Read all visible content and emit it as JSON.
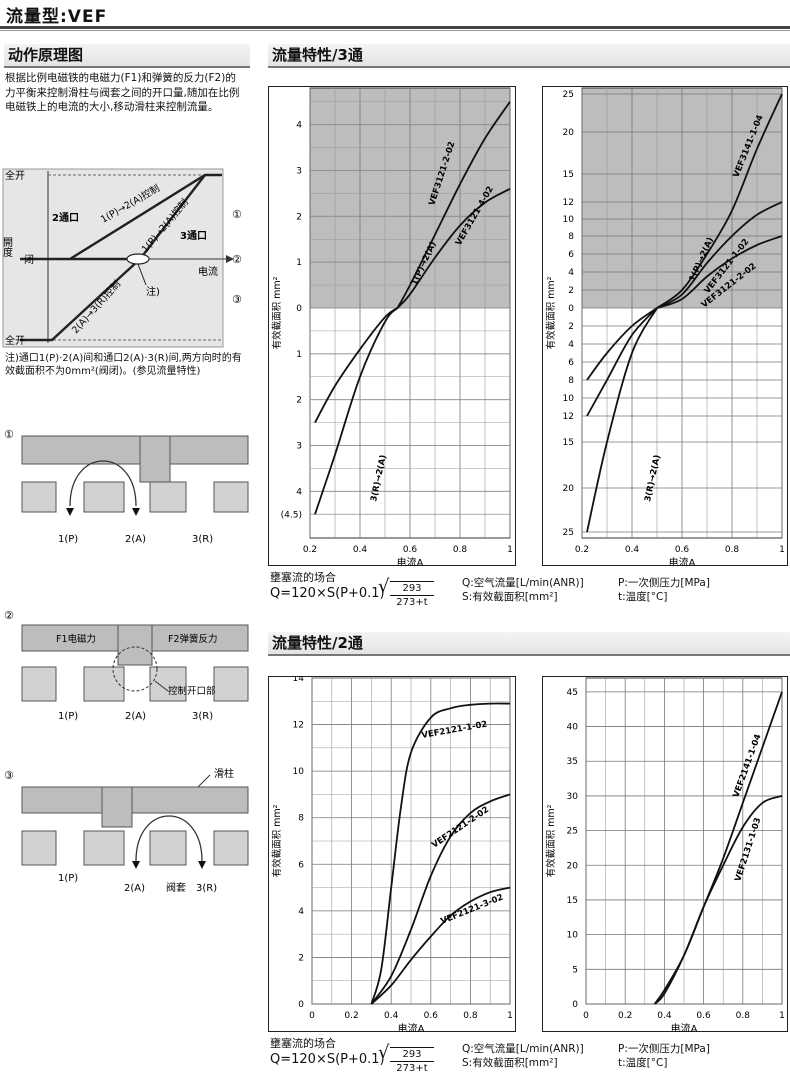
{
  "page_title": "流量型:VEF",
  "left": {
    "heading": "动作原理图",
    "description": "根据比例电磁铁的电磁力(F1)和弹簧的反力(F2)的力平衡来控制滑柱与阀套之间的开口量,随加在比例电磁铁上的电流的大小,移动滑柱来控制流量。",
    "diagram": {
      "y_top": "全开",
      "y_mid": "闭",
      "y_bottom": "全开",
      "y_axis": "開度",
      "x_axis": "电流",
      "port2": "2通口",
      "port3": "3通口",
      "line1": "1(P)→2(A)控制",
      "line2": "2(A)→3(R)控制",
      "line3": "1(P)→2(A)控制",
      "note_tag": "注)",
      "markers": [
        "①",
        "②",
        "③"
      ]
    },
    "note": "注)通口1(P)·2(A)间和通口2(A)·3(R)间,两方向时的有效截面积不为0mm²(阀闭)。(参见流量特性)",
    "state1": {
      "marker": "①",
      "ports": [
        "1(P)",
        "2(A)",
        "3(R)"
      ]
    },
    "state2": {
      "marker": "②",
      "force1": "F1电磁力",
      "force2": "F2弹簧反力",
      "opening": "控制开口部",
      "ports": [
        "1(P)",
        "2(A)",
        "3(R)"
      ]
    },
    "state3": {
      "marker": "③",
      "spool": "滑柱",
      "sleeve": "阀套",
      "ports": [
        "1(P)",
        "2(A)",
        "3(R)"
      ]
    }
  },
  "section3": {
    "heading": "流量特性/3通",
    "formula": {
      "label": "壅塞流的场合",
      "expr_left": "Q=120×S(P+0.1)",
      "sqrt_num": "293",
      "sqrt_den": "273+t",
      "q_desc": "Q:空气流量[L/min(ANR)]",
      "s_desc": "S:有效截面积[mm²]",
      "p_desc": "P:一次侧压力[MPa]",
      "t_desc": "t:温度[°C]"
    }
  },
  "section2": {
    "heading": "流量特性/2通",
    "formula": {
      "label": "壅塞流的场合",
      "expr_left": "Q=120×S(P+0.1)",
      "sqrt_num": "293",
      "sqrt_den": "273+t",
      "q_desc": "Q:空气流量[L/min(ANR)]",
      "s_desc": "S:有效截面积[mm²]",
      "p_desc": "P:一次侧压力[MPa]",
      "t_desc": "t:温度[°C]"
    }
  },
  "chart_data": [
    {
      "type": "line",
      "title": "",
      "xlabel": "电流A",
      "ylabel": "有效截面积 mm²",
      "xlim": [
        0.2,
        1
      ],
      "x_ticks": [
        "0.2",
        "0.4",
        "0.6",
        "0.8",
        "1"
      ],
      "y_ticks_top": [
        "4",
        "3",
        "2",
        "1",
        "0"
      ],
      "y_ticks_bottom": [
        "1",
        "2",
        "3",
        "4",
        "(4.5)"
      ],
      "series": [
        {
          "name": "VEF3121-2-02",
          "label2": "1(P)→2(A)",
          "x": [
            0.55,
            0.6,
            0.7,
            0.8,
            0.9,
            1.0
          ],
          "y": [
            0,
            0.5,
            1.6,
            2.7,
            3.7,
            4.5
          ]
        },
        {
          "name": "VEF3121-4-02",
          "x": [
            0.55,
            0.6,
            0.7,
            0.8,
            0.9,
            1.0
          ],
          "y": [
            0,
            0.3,
            1.1,
            1.8,
            2.3,
            2.6
          ]
        },
        {
          "name": "3(R)→2(A)",
          "x": [
            0.22,
            0.3,
            0.4,
            0.5,
            0.55
          ],
          "y": [
            -4.5,
            -3.2,
            -1.5,
            -0.3,
            0
          ]
        },
        {
          "name": "3(R)→2(A) (-4-02)",
          "x": [
            0.22,
            0.3,
            0.4,
            0.5,
            0.55
          ],
          "y": [
            -2.5,
            -1.7,
            -0.9,
            -0.2,
            0
          ]
        }
      ]
    },
    {
      "type": "line",
      "title": "",
      "xlabel": "电流A",
      "ylabel": "有效截面积 mm²",
      "xlim": [
        0.2,
        1
      ],
      "x_ticks": [
        "0.2",
        "0.4",
        "0.6",
        "0.8",
        "1"
      ],
      "y_ticks_top": [
        "25",
        "20",
        "15",
        "12",
        "10",
        "8",
        "6",
        "4",
        "2",
        "0"
      ],
      "y_ticks_bottom": [
        "2",
        "4",
        "6",
        "8",
        "10",
        "12",
        "15",
        "20",
        "25"
      ],
      "series": [
        {
          "name": "VEF3141-1-04",
          "label2": "1(P)→2(A)",
          "x": [
            0.5,
            0.6,
            0.7,
            0.8,
            0.9,
            1.0
          ],
          "y": [
            0,
            2,
            6,
            11,
            18,
            25
          ]
        },
        {
          "name": "VEF3121-1-02",
          "x": [
            0.5,
            0.6,
            0.7,
            0.8,
            0.9,
            1.0
          ],
          "y": [
            0,
            1.5,
            5,
            8,
            10.5,
            12
          ]
        },
        {
          "name": "VEF3121-2-02",
          "x": [
            0.5,
            0.6,
            0.7,
            0.8,
            0.9,
            1.0
          ],
          "y": [
            0,
            1,
            3.5,
            5.5,
            7,
            8
          ]
        },
        {
          "name": "3(R)→2(A)",
          "x": [
            0.22,
            0.3,
            0.4,
            0.5
          ],
          "y": [
            -25,
            -15,
            -5,
            0
          ]
        },
        {
          "name": "3(R)→2(A) (-1-02)",
          "x": [
            0.22,
            0.3,
            0.4,
            0.5
          ],
          "y": [
            -12,
            -8,
            -3,
            0
          ]
        },
        {
          "name": "3(R)→2(A) (-2-02)",
          "x": [
            0.22,
            0.3,
            0.4,
            0.5
          ],
          "y": [
            -8,
            -5,
            -2,
            0
          ]
        }
      ]
    },
    {
      "type": "line",
      "title": "",
      "xlabel": "电流A",
      "ylabel": "有效截面积 mm²",
      "xlim": [
        0,
        1
      ],
      "ylim": [
        0,
        14
      ],
      "x_ticks": [
        "0",
        "0.2",
        "0.4",
        "0.6",
        "0.8",
        "1"
      ],
      "y_ticks": [
        "0",
        "2",
        "4",
        "6",
        "8",
        "10",
        "12",
        "14"
      ],
      "series": [
        {
          "name": "VEF2121-1-02",
          "x": [
            0.3,
            0.35,
            0.4,
            0.45,
            0.5,
            0.6,
            0.7,
            0.8,
            0.9,
            1.0
          ],
          "y": [
            0,
            1.5,
            5,
            8.5,
            10.8,
            12.3,
            12.7,
            12.85,
            12.9,
            12.9
          ]
        },
        {
          "name": "VEF2121-2-02",
          "x": [
            0.3,
            0.4,
            0.5,
            0.6,
            0.7,
            0.8,
            0.9,
            1.0
          ],
          "y": [
            0,
            1.2,
            3.2,
            5.5,
            7.2,
            8.2,
            8.7,
            9
          ]
        },
        {
          "name": "VEF2121-3-02",
          "x": [
            0.3,
            0.4,
            0.5,
            0.6,
            0.7,
            0.8,
            0.9,
            1.0
          ],
          "y": [
            0,
            0.8,
            1.9,
            2.9,
            3.8,
            4.4,
            4.8,
            5
          ]
        }
      ]
    },
    {
      "type": "line",
      "title": "",
      "xlabel": "电流A",
      "ylabel": "有效截面积 mm²",
      "xlim": [
        0,
        1
      ],
      "ylim": [
        0,
        45
      ],
      "x_ticks": [
        "0",
        "0.2",
        "0.4",
        "0.6",
        "0.8",
        "1"
      ],
      "y_ticks": [
        "0",
        "5",
        "10",
        "15",
        "20",
        "25",
        "30",
        "35",
        "40",
        "45"
      ],
      "series": [
        {
          "name": "VEF2141-1-04",
          "x": [
            0.35,
            0.4,
            0.5,
            0.6,
            0.7,
            0.8,
            0.9,
            1.0
          ],
          "y": [
            0,
            2,
            7,
            14,
            21,
            29,
            37,
            45
          ]
        },
        {
          "name": "VEF2131-1-03",
          "x": [
            0.35,
            0.4,
            0.5,
            0.6,
            0.7,
            0.8,
            0.9,
            1.0
          ],
          "y": [
            0,
            1.5,
            7,
            14,
            20,
            25.5,
            29,
            30
          ]
        }
      ]
    }
  ]
}
